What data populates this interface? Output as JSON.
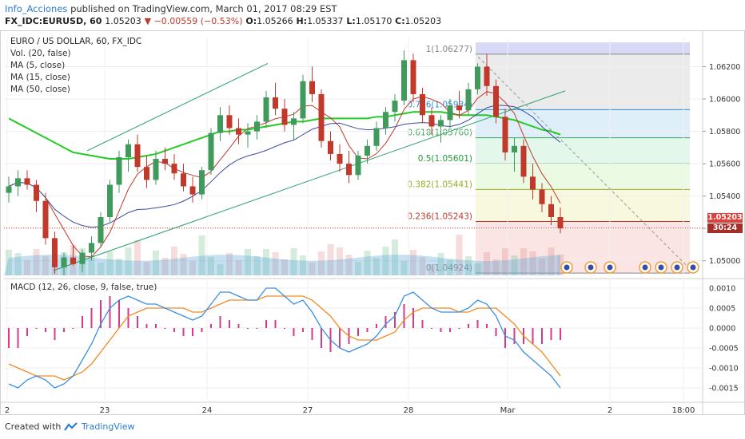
{
  "header": {
    "author": "Info_Acciones",
    "published": "published on TradingView.com, March 01, 2017 08:29 EST",
    "symbol": "FX_IDC:EURUSD, 60",
    "last": "1.05203",
    "change": "▼ −0.00559 (−0.53%)",
    "open_label": "O:",
    "open": "1.05266",
    "high_label": "H:",
    "high": "1.05337",
    "low_label": "L:",
    "low": "1.05170",
    "close_label": "C:",
    "close": "1.05203"
  },
  "legend": {
    "title": "EURO / US DOLLAR, 60, FX_IDC",
    "vol": "Vol. (20, false)",
    "ma5": "MA (5, close)",
    "ma15": "MA (15, close)",
    "ma50": "MA (50, close)"
  },
  "macd_legend": "MACD (12, 26, close, 9, false, true)",
  "price_tags": {
    "last": "1.05203",
    "countdown": "30:24"
  },
  "colors": {
    "up": "#3f9a5b",
    "down": "#c0392b",
    "ma5": "#c0392b",
    "ma15": "#3b4ba0",
    "ma50": "#22cc22",
    "macd": "#3a8ee6",
    "signal": "#f08a24",
    "hist": "#d6388a",
    "channel": "#2aa06a"
  },
  "footer": {
    "created": "Created with",
    "brand": "TradingView"
  },
  "chart_data": {
    "type": "candlestick",
    "price_axis": {
      "ticks": [
        "1.06200",
        "1.06000",
        "1.05800",
        "1.05600",
        "1.05400",
        "1.05200",
        "1.05000"
      ],
      "ylim": [
        1.049,
        1.0638
      ]
    },
    "macd_axis": {
      "ticks": [
        "0.0010",
        "0.0005",
        "0.0000",
        "-0.0005",
        "-0.0010",
        "-0.0015"
      ],
      "ylim": [
        -0.0018,
        0.0012
      ]
    },
    "time_ticks": [
      "2",
      "23",
      "24",
      "27",
      "28",
      "Mar",
      "2",
      "18:00"
    ],
    "fibonacci": [
      {
        "label": "1(1.06277)",
        "level": 1.06277
      },
      {
        "label": "0.786(1.05934)",
        "level": 1.05934
      },
      {
        "label": "0.618(1.05760)",
        "level": 1.0576
      },
      {
        "label": "0.5(1.05601)",
        "level": 1.05601
      },
      {
        "label": "0.382(1.05441)",
        "level": 1.05441
      },
      {
        "label": "0.236(1.05243)",
        "level": 1.05243
      },
      {
        "label": "0(1.04924)",
        "level": 1.04924
      }
    ],
    "series": [
      {
        "name": "MA (5, close)"
      },
      {
        "name": "MA (15, close)"
      },
      {
        "name": "MA (50, close)"
      },
      {
        "name": "MACD (12, 26, close, 9, false, true)"
      }
    ],
    "candles": [
      [
        1.0542,
        1.0552,
        1.0536,
        1.0546
      ],
      [
        1.0546,
        1.0556,
        1.054,
        1.0551
      ],
      [
        1.0551,
        1.0556,
        1.0544,
        1.0547
      ],
      [
        1.0547,
        1.055,
        1.053,
        1.0537
      ],
      [
        1.0537,
        1.0542,
        1.051,
        1.0514
      ],
      [
        1.0514,
        1.0518,
        1.0492,
        1.0496
      ],
      [
        1.0496,
        1.0505,
        1.0491,
        1.0502
      ],
      [
        1.0502,
        1.051,
        1.0497,
        1.0498
      ],
      [
        1.0498,
        1.0507,
        1.0493,
        1.0505
      ],
      [
        1.0505,
        1.0515,
        1.05,
        1.0511
      ],
      [
        1.0511,
        1.053,
        1.0508,
        1.0527
      ],
      [
        1.0527,
        1.055,
        1.0524,
        1.0547
      ],
      [
        1.0547,
        1.0568,
        1.0542,
        1.0564
      ],
      [
        1.0564,
        1.0575,
        1.0555,
        1.0572
      ],
      [
        1.0572,
        1.0578,
        1.0555,
        1.0558
      ],
      [
        1.0558,
        1.0565,
        1.0545,
        1.055
      ],
      [
        1.055,
        1.0568,
        1.0547,
        1.0563
      ],
      [
        1.0563,
        1.057,
        1.0556,
        1.056
      ],
      [
        1.056,
        1.0566,
        1.055,
        1.0554
      ],
      [
        1.0554,
        1.056,
        1.0543,
        1.0546
      ],
      [
        1.0546,
        1.0552,
        1.0536,
        1.0541
      ],
      [
        1.0541,
        1.0558,
        1.0538,
        1.0556
      ],
      [
        1.0556,
        1.0582,
        1.0553,
        1.0579
      ],
      [
        1.0579,
        1.0595,
        1.0574,
        1.059
      ],
      [
        1.059,
        1.0596,
        1.0578,
        1.0582
      ],
      [
        1.0582,
        1.0588,
        1.0572,
        1.0578
      ],
      [
        1.0578,
        1.0585,
        1.057,
        1.058
      ],
      [
        1.058,
        1.059,
        1.0575,
        1.0586
      ],
      [
        1.0586,
        1.0605,
        1.0582,
        1.0601
      ],
      [
        1.0601,
        1.061,
        1.059,
        1.0594
      ],
      [
        1.0594,
        1.06,
        1.058,
        1.0584
      ],
      [
        1.0584,
        1.0592,
        1.0575,
        1.0588
      ],
      [
        1.0588,
        1.0615,
        1.0585,
        1.0611
      ],
      [
        1.0611,
        1.062,
        1.0598,
        1.0603
      ],
      [
        1.0603,
        1.0606,
        1.057,
        1.0574
      ],
      [
        1.0574,
        1.058,
        1.0562,
        1.0566
      ],
      [
        1.0566,
        1.0572,
        1.0555,
        1.056
      ],
      [
        1.056,
        1.0568,
        1.0548,
        1.0553
      ],
      [
        1.0553,
        1.0568,
        1.055,
        1.0565
      ],
      [
        1.0565,
        1.0575,
        1.056,
        1.0571
      ],
      [
        1.0571,
        1.0586,
        1.0568,
        1.0582
      ],
      [
        1.0582,
        1.0595,
        1.0578,
        1.0592
      ],
      [
        1.0592,
        1.0603,
        1.0586,
        1.0599
      ],
      [
        1.0599,
        1.063,
        1.0596,
        1.0624
      ],
      [
        1.0624,
        1.0628,
        1.0598,
        1.0603
      ],
      [
        1.0603,
        1.0607,
        1.0585,
        1.059
      ],
      [
        1.059,
        1.0595,
        1.0578,
        1.0583
      ],
      [
        1.0583,
        1.059,
        1.0573,
        1.0587
      ],
      [
        1.0587,
        1.06,
        1.0582,
        1.0596
      ],
      [
        1.0596,
        1.0605,
        1.0588,
        1.0593
      ],
      [
        1.0593,
        1.061,
        1.059,
        1.0606
      ],
      [
        1.0606,
        1.0622,
        1.0603,
        1.062
      ],
      [
        1.062,
        1.0628,
        1.0602,
        1.0608
      ],
      [
        1.0608,
        1.0612,
        1.0585,
        1.0589
      ],
      [
        1.0589,
        1.0594,
        1.0562,
        1.0567
      ],
      [
        1.0567,
        1.0576,
        1.0555,
        1.0571
      ],
      [
        1.0571,
        1.0575,
        1.0548,
        1.0552
      ],
      [
        1.0552,
        1.056,
        1.0538,
        1.0544
      ],
      [
        1.0544,
        1.0548,
        1.053,
        1.0535
      ],
      [
        1.0535,
        1.054,
        1.0522,
        1.0527
      ],
      [
        1.0527,
        1.0533,
        1.0517,
        1.052
      ]
    ],
    "ma50": [
      1.0588,
      1.0585,
      1.0582,
      1.0579,
      1.0576,
      1.0573,
      1.057,
      1.0567,
      1.0566,
      1.0565,
      1.0564,
      1.0563,
      1.0563,
      1.0563,
      1.0564,
      1.0565,
      1.0566,
      1.0568,
      1.057,
      1.0572,
      1.0574,
      1.0576,
      1.0578,
      1.058,
      1.058,
      1.0581,
      1.0581,
      1.0582,
      1.0583,
      1.0584,
      1.0585,
      1.0586,
      1.0586,
      1.0587,
      1.0588,
      1.0588,
      1.0588,
      1.0588,
      1.0588,
      1.0588,
      1.0589,
      1.0589,
      1.059,
      1.0591,
      1.0592,
      1.0592,
      1.0592,
      1.0592,
      1.0591,
      1.059,
      1.059,
      1.059,
      1.059,
      1.0589,
      1.0588,
      1.0587,
      1.0585,
      1.0583,
      1.0581,
      1.058,
      1.0578
    ],
    "macd": [
      -0.0014,
      -0.0015,
      -0.0013,
      -0.0012,
      -0.0013,
      -0.0015,
      -0.0014,
      -0.0012,
      -0.0008,
      -0.0004,
      0.0001,
      0.0005,
      0.0007,
      0.0008,
      0.0007,
      0.0006,
      0.0006,
      0.0005,
      0.0004,
      0.0003,
      0.0002,
      0.0003,
      0.0006,
      0.0009,
      0.0009,
      0.0008,
      0.0007,
      0.0007,
      0.001,
      0.001,
      0.0008,
      0.0006,
      0.0007,
      0.0004,
      0.0,
      -0.0003,
      -0.0005,
      -0.0006,
      -0.0005,
      -0.0004,
      -0.0002,
      0.0001,
      0.0003,
      0.0008,
      0.0009,
      0.0007,
      0.0005,
      0.0004,
      0.0004,
      0.0004,
      0.0005,
      0.0007,
      0.0006,
      0.0003,
      -0.0002,
      -0.0003,
      -0.0006,
      -0.0008,
      -0.001,
      -0.0012,
      -0.0015
    ],
    "signal": [
      -0.0009,
      -0.001,
      -0.0011,
      -0.0012,
      -0.0012,
      -0.0012,
      -0.0013,
      -0.0012,
      -0.0011,
      -0.0009,
      -0.0006,
      -0.0003,
      0.0,
      0.0003,
      0.0004,
      0.0005,
      0.0005,
      0.0005,
      0.0005,
      0.0005,
      0.0004,
      0.0004,
      0.0005,
      0.0006,
      0.0007,
      0.0007,
      0.0007,
      0.0007,
      0.0008,
      0.0008,
      0.0008,
      0.0008,
      0.0008,
      0.0007,
      0.0005,
      0.0003,
      0.0,
      -0.0002,
      -0.0003,
      -0.0003,
      -0.0003,
      -0.0002,
      -0.0001,
      0.0002,
      0.0004,
      0.0005,
      0.0005,
      0.0005,
      0.0005,
      0.0004,
      0.0004,
      0.0005,
      0.0005,
      0.0005,
      0.0003,
      0.0001,
      -0.0002,
      -0.0004,
      -0.0006,
      -0.0009,
      -0.0012
    ]
  }
}
